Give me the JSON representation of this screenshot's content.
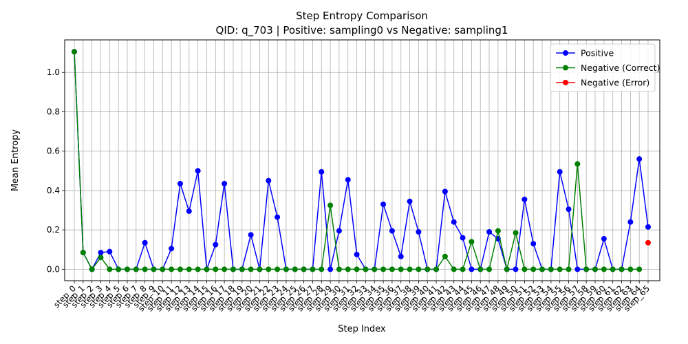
{
  "chart_data": {
    "type": "line",
    "title": "Step Entropy Comparison",
    "subtitle": "QID: q_703 | Positive: sampling0 vs Negative: sampling1",
    "xlabel": "Step Index",
    "ylabel": "Mean Entropy",
    "ylim": [
      -0.058,
      1.165
    ],
    "yticks": [
      0.0,
      0.2,
      0.4,
      0.6,
      0.8,
      1.0
    ],
    "ytick_labels": [
      "0.0",
      "0.2",
      "0.4",
      "0.6",
      "0.8",
      "1.0"
    ],
    "grid": true,
    "legend_position": "top-right",
    "categories": [
      "step_0",
      "step_1",
      "step_2",
      "step_3",
      "step_4",
      "step_5",
      "step_6",
      "step_7",
      "step_8",
      "step_9",
      "step_10",
      "step_11",
      "step_12",
      "step_13",
      "step_14",
      "step_15",
      "step_16",
      "step_17",
      "step_18",
      "step_19",
      "step_20",
      "step_21",
      "step_22",
      "step_23",
      "step_24",
      "step_25",
      "step_26",
      "step_27",
      "step_28",
      "step_29",
      "step_30",
      "step_31",
      "step_32",
      "step_33",
      "step_34",
      "step_35",
      "step_36",
      "step_37",
      "step_38",
      "step_39",
      "step_40",
      "step_41",
      "step_42",
      "step_43",
      "step_44",
      "step_45",
      "step_46",
      "step_47",
      "step_48",
      "step_49",
      "step_50",
      "step_51",
      "step_52",
      "step_53",
      "step_54",
      "step_55",
      "step_56",
      "step_57",
      "step_58",
      "step_59",
      "step_60",
      "step_61",
      "step_62",
      "step_63",
      "step_64",
      "step_65"
    ],
    "series": [
      {
        "name": "Positive",
        "color": "#0000ff",
        "values": [
          1.105,
          0.085,
          0.0,
          0.085,
          0.09,
          0.0,
          0.0,
          0.0,
          0.135,
          0.0,
          0.0,
          0.105,
          0.435,
          0.295,
          0.5,
          0.0,
          0.125,
          0.435,
          0.0,
          0.0,
          0.175,
          0.0,
          0.45,
          0.265,
          0.0,
          0.0,
          0.0,
          0.0,
          0.495,
          0.0,
          0.195,
          0.455,
          0.075,
          0.0,
          0.0,
          0.33,
          0.195,
          0.065,
          0.345,
          0.19,
          0.0,
          0.0,
          0.395,
          0.24,
          0.16,
          0.0,
          0.0,
          0.19,
          0.155,
          0.0,
          0.0,
          0.355,
          0.13,
          0.0,
          0.0,
          0.495,
          0.305,
          0.0,
          0.0,
          0.0,
          0.155,
          0.0,
          0.0,
          0.24,
          0.56,
          0.215
        ]
      },
      {
        "name": "Negative (Correct)",
        "color": "#008000",
        "values": [
          1.105,
          0.085,
          0.0,
          0.06,
          0.0,
          0.0,
          0.0,
          0.0,
          0.0,
          0.0,
          0.0,
          0.0,
          0.0,
          0.0,
          0.0,
          0.0,
          0.0,
          0.0,
          0.0,
          0.0,
          0.0,
          0.0,
          0.0,
          0.0,
          0.0,
          0.0,
          0.0,
          0.0,
          0.0,
          0.325,
          0.0,
          0.0,
          0.0,
          0.0,
          0.0,
          0.0,
          0.0,
          0.0,
          0.0,
          0.0,
          0.0,
          0.0,
          0.065,
          0.0,
          0.0,
          0.14,
          0.0,
          0.0,
          0.195,
          0.0,
          0.185,
          0.0,
          0.0,
          0.0,
          0.0,
          0.0,
          0.0,
          0.535,
          0.0,
          0.0,
          0.0,
          0.0,
          0.0,
          0.0,
          0.0,
          null
        ]
      },
      {
        "name": "Negative (Error)",
        "color": "#ff0000",
        "values": [
          null,
          null,
          null,
          null,
          null,
          null,
          null,
          null,
          null,
          null,
          null,
          null,
          null,
          null,
          null,
          null,
          null,
          null,
          null,
          null,
          null,
          null,
          null,
          null,
          null,
          null,
          null,
          null,
          null,
          null,
          null,
          null,
          null,
          null,
          null,
          null,
          null,
          null,
          null,
          null,
          null,
          null,
          null,
          null,
          null,
          null,
          null,
          null,
          null,
          null,
          null,
          null,
          null,
          null,
          null,
          null,
          null,
          null,
          null,
          null,
          null,
          null,
          null,
          null,
          null,
          0.135
        ]
      }
    ]
  }
}
